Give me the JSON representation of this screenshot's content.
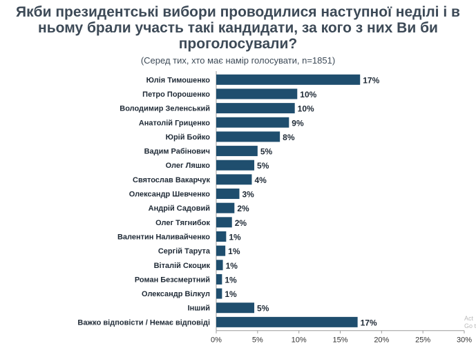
{
  "chart_data": {
    "type": "bar",
    "orientation": "horizontal",
    "title_lines": [
      "Якби президентські вибори проводилися наступної неділі і в",
      "ньому брали участь такі кандидати, за кого з них Ви би",
      "проголосували?"
    ],
    "subtitle": "(Серед тих, хто має намір голосувати, n=1851)",
    "categories": [
      "Юлія Тимошенко",
      "Петро Порошенко",
      "Володимир Зеленський",
      "Анатолій Гриценко",
      "Юрій Бойко",
      "Вадим Рабінович",
      "Олег Ляшко",
      "Святослав Вакарчук",
      "Олександр Шевченко",
      "Андрій Садовий",
      "Олег Тягнибок",
      "Валентин Наливайченко",
      "Сергій Тарута",
      "Віталій Скоцик",
      "Роман Безсмертний",
      "Олександр Вілкул",
      "Інший",
      "Важко відповісти / Немає відповіді"
    ],
    "values": [
      17.4,
      9.8,
      9.5,
      8.8,
      7.7,
      5.0,
      4.6,
      4.3,
      2.8,
      2.2,
      1.9,
      1.2,
      1.1,
      0.8,
      0.7,
      0.7,
      4.6,
      17.1
    ],
    "value_labels": [
      "17%",
      "10%",
      "10%",
      "9%",
      "8%",
      "5%",
      "5%",
      "4%",
      "3%",
      "2%",
      "2%",
      "1%",
      "1%",
      "1%",
      "1%",
      "1%",
      "5%",
      "17%"
    ],
    "xlim": [
      0,
      30
    ],
    "xticks": [
      "0%",
      "5%",
      "10%",
      "15%",
      "20%",
      "25%",
      "30%"
    ],
    "bar_color": "#1f4e6e",
    "grid": false,
    "legend": "none"
  },
  "watermark_lines": [
    "Act",
    "Go t"
  ]
}
